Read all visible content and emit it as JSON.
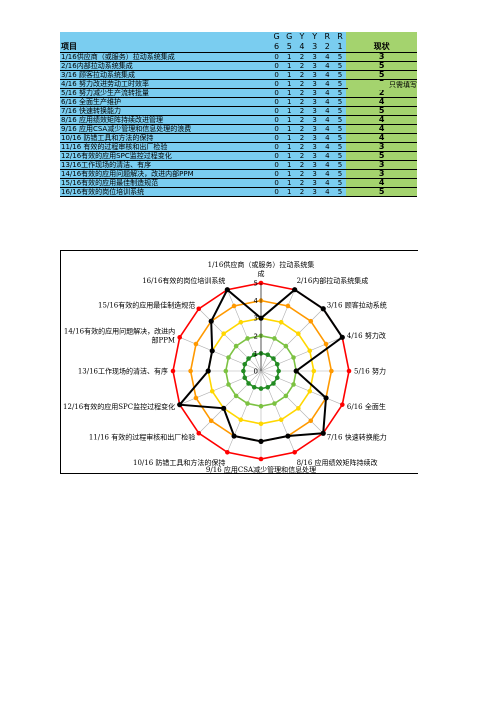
{
  "table": {
    "header_item": "项目",
    "header_status": "现状",
    "header_top": [
      "G",
      "G",
      "Y",
      "Y",
      "R",
      "R"
    ],
    "header_bottom": [
      "6",
      "5",
      "4",
      "3",
      "2",
      "1"
    ],
    "score_scale": [
      "0",
      "1",
      "2",
      "3",
      "4",
      "5"
    ],
    "rows": [
      {
        "name": "1/16供应商（或服务）拉动系统集成",
        "status": "3"
      },
      {
        "name": "2/16内部拉动系统集成",
        "status": "5"
      },
      {
        "name": "3/16 顾客拉动系统集成",
        "status": "5"
      },
      {
        "name": "4/16 努力改进劳动工时效率",
        "status": "5"
      },
      {
        "name": "5/16 努力减少生产流转批量",
        "status": "2"
      },
      {
        "name": "6/16 全面生产维护",
        "status": "4"
      },
      {
        "name": "7/16 快速转换能力",
        "status": "5"
      },
      {
        "name": "8/16 应用绩效矩阵持续改进管理",
        "status": "4"
      },
      {
        "name": "9/16 应用CSA减少管理和信息处理的浪费",
        "status": "4"
      },
      {
        "name": "10/16 防错工具和方法的保持",
        "status": "4"
      },
      {
        "name": "11/16 有效的过程审核和出厂检验",
        "status": "3"
      },
      {
        "name": "12/16有效的应用SPC监控过程变化",
        "status": "5"
      },
      {
        "name": "13/16工作现场的清洁、有序",
        "status": "3"
      },
      {
        "name": "14/16有效的应用问题解决，改进内部PPM",
        "status": "3"
      },
      {
        "name": "15/16有效的应用最佳制造规范",
        "status": "4"
      },
      {
        "name": "16/16有效的岗位培训系统",
        "status": "5"
      }
    ]
  },
  "note": "只需填写",
  "chart_data": {
    "type": "radar",
    "rmax": 5,
    "ticks": [
      "0",
      "1",
      "2",
      "3",
      "4",
      "5"
    ],
    "axis_labels": [
      [
        "1/16供应商（或服务）拉动系统集",
        "成"
      ],
      [
        "2/16内部拉动系统集成"
      ],
      [
        "3/16 顾客拉动系统"
      ],
      [
        "4/16 努力改"
      ],
      [
        "5/16 努力"
      ],
      [
        "6/16 全面生"
      ],
      [
        "7/16 快速转换能力"
      ],
      [
        "8/16 应用绩效矩阵持续改"
      ],
      [
        "9/16 应用CSA减少管理和信息处理",
        "的浪费"
      ],
      [
        "10/16 防错工具和方法的保持"
      ],
      [
        "11/16 有效的过程审核和出厂检验"
      ],
      [
        "12/16有效的应用SPC监控过程变化"
      ],
      [
        "13/16工作现场的清洁、有序"
      ],
      [
        "14/16有效的应用问题解决，改进内",
        "部PPM"
      ],
      [
        "15/16有效的应用最佳制造规范"
      ],
      [
        "16/16有效的岗位培训系统"
      ]
    ],
    "ring_colors": {
      "1": "#228B22",
      "2": "#7cc242",
      "3": "#ffd700",
      "4": "#ff9900",
      "5": "#ff0000"
    },
    "series": [
      {
        "values": [
          3,
          5,
          5,
          5,
          2,
          4,
          5,
          4,
          4,
          4,
          3,
          5,
          3,
          3,
          4,
          5
        ],
        "color": "#000000"
      }
    ]
  }
}
